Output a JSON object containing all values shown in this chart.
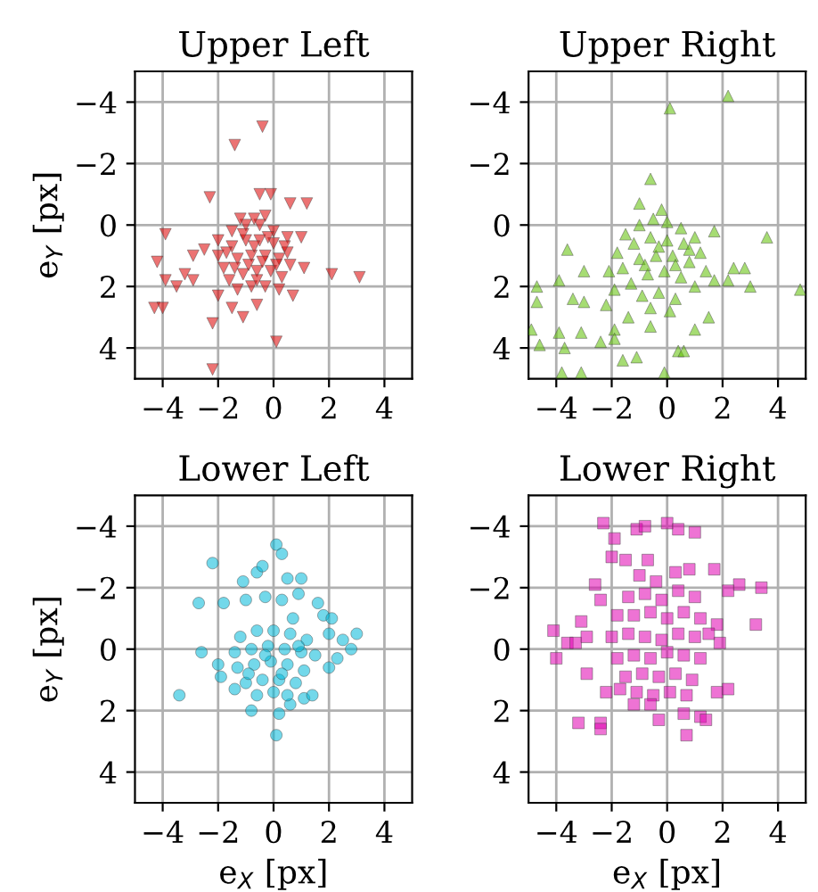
{
  "chart_data": [
    {
      "type": "scatter",
      "title": "Upper Left",
      "ylabel": "e$_{Y}$ [px]",
      "color": "#dd0000",
      "marker": "triangle_down",
      "xlim": [
        -5,
        5
      ],
      "ylim": [
        5,
        -5
      ],
      "xticks": [
        -4,
        -2,
        0,
        2,
        4
      ],
      "yticks": [
        -4,
        -2,
        0,
        2,
        4
      ],
      "grid": true,
      "x": [
        -0.4,
        -1.4,
        -2.3,
        -0.5,
        -0.1,
        0.6,
        1.2,
        -4.2,
        -4.3,
        -4.0,
        -3.9,
        -3.9,
        -3.5,
        -2.9,
        -3.2,
        2.1,
        3.1,
        0.1,
        -2.2,
        -2.2,
        -1.1,
        0.7,
        1.1,
        1.0,
        -2.5,
        -2.9,
        -2.0,
        -0.6,
        -1.5,
        -2,
        -1.5,
        -1,
        -0.5,
        0,
        0.5,
        -2,
        -1.5,
        -1,
        -0.5,
        0,
        0.5,
        -1.8,
        -1.3,
        -0.8,
        -0.3,
        0.2,
        0.6,
        -1.6,
        -1.1,
        -0.6,
        -0.1,
        0.3,
        -1.3,
        -0.8,
        -0.3,
        0.2,
        -1.1,
        -0.7,
        -0.2,
        -1.4,
        -0.9,
        -0.4,
        0.1,
        -0.6,
        -1.7,
        0.4,
        -1.2,
        -0.7,
        -0.3
      ],
      "values": [
        -3.2,
        -2.6,
        -0.9,
        -1.0,
        -1.0,
        -0.7,
        -0.7,
        1.2,
        2.7,
        2.7,
        0.3,
        1.8,
        2.0,
        1.8,
        1.6,
        1.6,
        1.7,
        3.8,
        4.7,
        3.2,
        3.0,
        2.3,
        1.4,
        0.4,
        0.8,
        1.0,
        2.3,
        2.6,
        2.7,
        0.5,
        0.2,
        0,
        0,
        0.2,
        0.4,
        1,
        0.7,
        0.5,
        0.5,
        0.6,
        0.9,
        1.4,
        1.1,
        1,
        1,
        1.1,
        1.3,
        1.8,
        1.6,
        1.5,
        1.5,
        1.7,
        2.1,
        2,
        2,
        2.1,
        0.3,
        0.7,
        0.4,
        1.4,
        1.3,
        1.2,
        1.3,
        1.8,
        0.9,
        0.7,
        -0.2,
        -0.2,
        -0.3
      ]
    },
    {
      "type": "scatter",
      "title": "Upper Right",
      "color": "#5cc000",
      "marker": "triangle",
      "xlim": [
        -5,
        5
      ],
      "ylim": [
        5,
        -5
      ],
      "xticks": [
        -4,
        -2,
        0,
        2,
        4
      ],
      "yticks": [
        -4,
        -2,
        0,
        2,
        4
      ],
      "grid": true,
      "x": [
        2.2,
        0.1,
        -0.6,
        -1.0,
        3.6,
        4.8,
        -3.6,
        -4.7,
        -4.7,
        -4.9,
        -4.6,
        -3.9,
        -3.9,
        -3.7,
        -3.8,
        -3.1,
        -3.4,
        -3.0,
        -3.0,
        -3.1,
        -2.4,
        -1.6,
        -1.1,
        -0.1,
        0.4,
        0.6,
        1.0,
        1.5,
        2.4,
        2.8,
        3.0,
        2.2,
        1.7,
        -1.9,
        -1.4,
        -0.6,
        -2.2,
        -1.9,
        -1.5,
        -1,
        -0.5,
        0,
        0.5,
        1,
        -1.8,
        -1.2,
        -0.6,
        0,
        0.6,
        1.2,
        -1.6,
        -1,
        -0.4,
        0.2,
        0.8,
        1.4,
        -1.3,
        -0.7,
        -0.1,
        0.5,
        1,
        -0.9,
        -0.3,
        0.3,
        -0.6,
        0.1,
        -0.3,
        0.3,
        -0.8,
        0.8,
        -1.9,
        -2.1,
        1.7,
        -0.2
      ],
      "values": [
        -4.2,
        -3.8,
        -1.5,
        -0.7,
        0.4,
        2.1,
        0.8,
        2.0,
        2.5,
        3.4,
        3.9,
        1.8,
        3.5,
        4.0,
        4.8,
        4.8,
        2.4,
        1.5,
        2.5,
        3.5,
        3.8,
        4.4,
        4.3,
        4.8,
        4.1,
        4.1,
        3.4,
        3.0,
        1.4,
        1.4,
        2.0,
        1.8,
        0.2,
        3.4,
        3.0,
        3.3,
        2.6,
        3.7,
        0.3,
        0,
        -0.2,
        -0.1,
        0.1,
        0.4,
        0.9,
        0.6,
        0.4,
        0.5,
        0.6,
        0.9,
        1.4,
        1.1,
        1,
        1,
        1.2,
        1.5,
        1.9,
        1.6,
        1.5,
        1.7,
        2,
        2.3,
        2.2,
        2.4,
        2.7,
        2.8,
        0.7,
        1.3,
        1.3,
        0.8,
        2.1,
        1.5,
        1.8,
        -0.5
      ]
    },
    {
      "type": "scatter",
      "title": "Lower Left",
      "xlabel": "e$_{X}$ [px]",
      "ylabel": "e$_{Y}$ [px]",
      "color": "#00b8d8",
      "marker": "circle",
      "xlim": [
        -5,
        5
      ],
      "ylim": [
        5,
        -5
      ],
      "xticks": [
        -4,
        -2,
        0,
        2,
        4
      ],
      "yticks": [
        -4,
        -2,
        0,
        2,
        4
      ],
      "grid": true,
      "x": [
        0.1,
        0.3,
        -2.2,
        -2.7,
        -1.8,
        -1.1,
        -1.0,
        -0.6,
        -0.4,
        0.5,
        1.0,
        0.9,
        1.6,
        1.8,
        2.1,
        2.0,
        2.5,
        3.0,
        2.8,
        2.3,
        2.0,
        -3.4,
        -2.6,
        -2.0,
        -1.9,
        0.1,
        0.2,
        0.6,
        1.1,
        1.4,
        -0.8,
        -1.4,
        -0.3,
        0.3,
        0.7,
        -1.2,
        -0.6,
        0,
        0.6,
        1.2,
        -1.4,
        -0.8,
        -0.2,
        0.4,
        1,
        1.5,
        -1.3,
        -0.7,
        -0.1,
        0.5,
        1.1,
        -1,
        -0.4,
        0.2,
        0.8,
        -0.6,
        0,
        0.5,
        -0.3,
        0.3,
        -0.9,
        0.9
      ],
      "values": [
        -3.4,
        -3.1,
        -2.8,
        -1.5,
        -1.5,
        -2.2,
        -1.6,
        -2.5,
        -2.7,
        -2.3,
        -2.3,
        -1.8,
        -1.5,
        -1.1,
        -1.0,
        -0.5,
        -0.3,
        -0.5,
        0.0,
        0.3,
        0.6,
        1.5,
        0.1,
        0.5,
        0.9,
        2.8,
        2.1,
        1.8,
        1.6,
        1.5,
        2.0,
        1.3,
        -1.7,
        -1.6,
        -1.0,
        -0.4,
        -0.6,
        -0.6,
        -0.5,
        -0.3,
        0.1,
        0,
        -0.1,
        0,
        0.1,
        0.2,
        0.6,
        0.5,
        0.4,
        0.5,
        0.7,
        1.1,
        1,
        1,
        1.1,
        1.5,
        1.4,
        1.5,
        0.2,
        0.8,
        0.8,
        -0.1
      ]
    },
    {
      "type": "scatter",
      "title": "Lower Right",
      "xlabel": "e$_{X}$ [px]",
      "color": "#e000b0",
      "marker": "square",
      "xlim": [
        -5,
        5
      ],
      "ylim": [
        5,
        -5
      ],
      "xticks": [
        -4,
        -2,
        0,
        2,
        4
      ],
      "yticks": [
        -4,
        -2,
        0,
        2,
        4
      ],
      "grid": true,
      "x": [
        -2.3,
        -1.1,
        -0.8,
        0.0,
        0.4,
        1.0,
        -1.9,
        -2.0,
        1.7,
        2.6,
        3.4,
        2.2,
        3.2,
        1.8,
        1.9,
        -4.1,
        -4.0,
        -3.6,
        -3.3,
        -2.9,
        -3.1,
        -2.6,
        -2.4,
        -2.9,
        -2.2,
        -3.2,
        -2.4,
        -2.4,
        -0.3,
        0.6,
        0.7,
        1.2,
        1.4,
        1.8,
        2.2,
        -1.7,
        -1.2,
        -1,
        -0.4,
        0.3,
        0.8,
        -1.4,
        -0.8,
        -0.2,
        0.4,
        1,
        -1.8,
        -1.2,
        -0.6,
        0,
        0.6,
        1.2,
        -2,
        -1.4,
        -0.8,
        -0.2,
        0.4,
        1,
        1.5,
        -1.8,
        -1.2,
        -0.6,
        0,
        0.6,
        1.2,
        -1.5,
        -0.9,
        -0.3,
        0.3,
        0.9,
        -1.1,
        -0.5,
        0.1,
        0.7,
        -0.6,
        -1.5,
        -0.7
      ],
      "values": [
        -4.1,
        -3.9,
        -4.0,
        -4.1,
        -3.9,
        -3.8,
        -3.6,
        -3.0,
        -2.6,
        -2.1,
        -2.0,
        -1.9,
        -0.8,
        -0.8,
        -0.2,
        -0.6,
        0.3,
        -0.2,
        -0.2,
        -0.4,
        -0.9,
        -2.1,
        -1.6,
        0.8,
        1.4,
        2.4,
        2.4,
        2.6,
        2.3,
        2.1,
        2.8,
        2.2,
        2.3,
        1.4,
        1.3,
        1.3,
        1.8,
        -2.4,
        -2.2,
        -2.5,
        -2.6,
        -1.7,
        -1.8,
        -1.6,
        -1.9,
        -1.7,
        -1.1,
        -1.1,
        -1.2,
        -1,
        -1.2,
        -1,
        -0.4,
        -0.5,
        -0.4,
        -0.3,
        -0.5,
        -0.4,
        -0.5,
        0.3,
        0.2,
        0.3,
        0.1,
        0.2,
        0.3,
        0.9,
        0.8,
        0.9,
        0.8,
        1,
        1.4,
        1.5,
        1.4,
        1.5,
        1.8,
        -2.9,
        -2.9
      ]
    }
  ]
}
